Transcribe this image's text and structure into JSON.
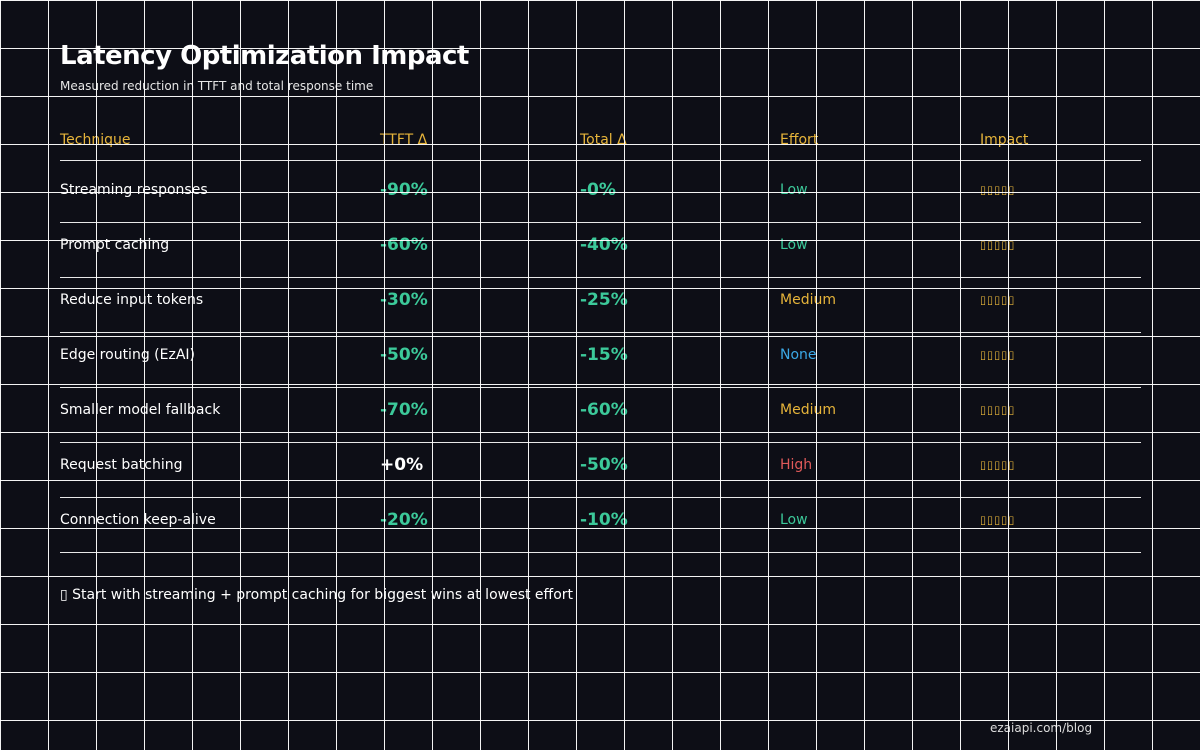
{
  "title": "Latency Optimization Impact",
  "subtitle": "Measured reduction in TTFT and total response time",
  "columns": [
    "Technique",
    "TTFT Δ",
    "Total Δ",
    "Effort",
    "Impact"
  ],
  "rows": [
    {
      "technique": "Streaming responses",
      "ttft": "-90%",
      "total": "-0%",
      "effort": "Low",
      "impact": "▯▯▯▯▯"
    },
    {
      "technique": "Prompt caching",
      "ttft": "-60%",
      "total": "-40%",
      "effort": "Low",
      "impact": "▯▯▯▯▯"
    },
    {
      "technique": "Reduce input tokens",
      "ttft": "-30%",
      "total": "-25%",
      "effort": "Medium",
      "impact": "▯▯▯▯▯"
    },
    {
      "technique": "Edge routing (EzAI)",
      "ttft": "-50%",
      "total": "-15%",
      "effort": "None",
      "impact": "▯▯▯▯▯"
    },
    {
      "technique": "Smaller model fallback",
      "ttft": "-70%",
      "total": "-60%",
      "effort": "Medium",
      "impact": "▯▯▯▯▯"
    },
    {
      "technique": "Request batching",
      "ttft": "+0%",
      "total": "-50%",
      "effort": "High",
      "impact": "▯▯▯▯▯"
    },
    {
      "technique": "Connection keep-alive",
      "ttft": "-20%",
      "total": "-10%",
      "effort": "Low",
      "impact": "▯▯▯▯▯"
    }
  ],
  "hint": "▯ Start with streaming + prompt caching for biggest wins at lowest effort",
  "footer": "ezaiapi.com/blog",
  "colors": {
    "header": "#e6b43a",
    "reduction": "#3cc99a",
    "neutral": "#ffffff",
    "low": "#3cc99a",
    "medium": "#e6b43a",
    "none": "#3ba8e6",
    "high": "#e05a5a"
  }
}
